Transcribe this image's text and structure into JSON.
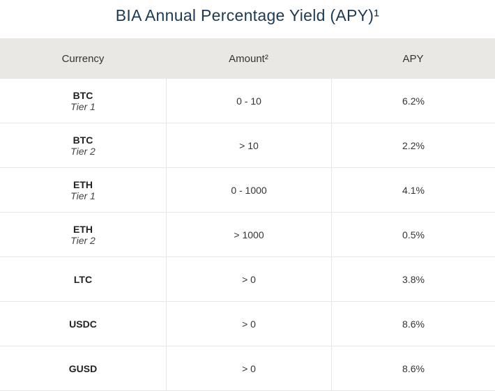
{
  "title": "BIA Annual Percentage Yield (APY)¹",
  "table": {
    "header": [
      "Currency",
      "Amount²",
      "APY"
    ],
    "rows": [
      {
        "currency": "BTC",
        "tier": "Tier 1",
        "amount": "0 - 10",
        "apy": "6.2%"
      },
      {
        "currency": "BTC",
        "tier": "Tier 2",
        "amount": "> 10",
        "apy": "2.2%"
      },
      {
        "currency": "ETH",
        "tier": "Tier 1",
        "amount": "0 - 1000",
        "apy": "4.1%"
      },
      {
        "currency": "ETH",
        "tier": "Tier 2",
        "amount": "> 1000",
        "apy": "0.5%"
      },
      {
        "currency": "LTC",
        "amount": "> 0",
        "apy": "3.8%"
      },
      {
        "currency": "USDC",
        "amount": "> 0",
        "apy": "8.6%"
      },
      {
        "currency": "GUSD",
        "amount": "> 0",
        "apy": "8.6%"
      }
    ]
  }
}
